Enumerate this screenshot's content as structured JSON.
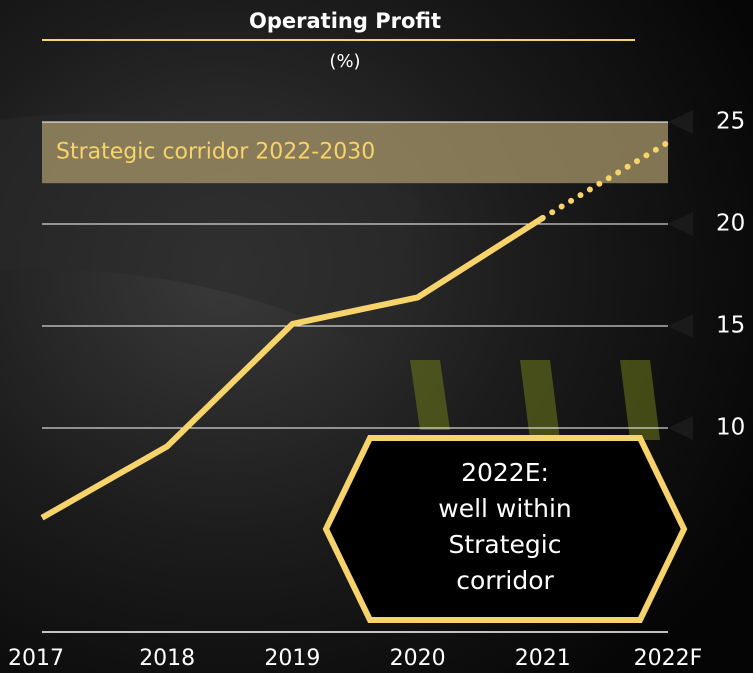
{
  "chart_data": {
    "type": "line",
    "title": "Operating Profit",
    "subtitle": "(%)",
    "categories": [
      "2017",
      "2018",
      "2019",
      "2020",
      "2021",
      "2022F"
    ],
    "series": [
      {
        "color": "#f7d36b",
        "style": "solid",
        "values": [
          5.6,
          9.1,
          15.1,
          16.4,
          20.3,
          null
        ]
      },
      {
        "color": "#f7d36b",
        "style": "dotted",
        "values": [
          null,
          null,
          null,
          null,
          20.3,
          24.0
        ]
      }
    ],
    "ylim": [
      0,
      25
    ],
    "yticks": [
      10,
      15,
      20,
      25
    ],
    "grid": true,
    "band": {
      "label": "Strategic corridor 2022-2030",
      "range": [
        22,
        25
      ],
      "color": "#a8976a"
    },
    "annotation": {
      "lines": [
        "2022E:",
        "well within",
        "Strategic",
        "corridor"
      ],
      "color": "#f7d36b"
    }
  }
}
